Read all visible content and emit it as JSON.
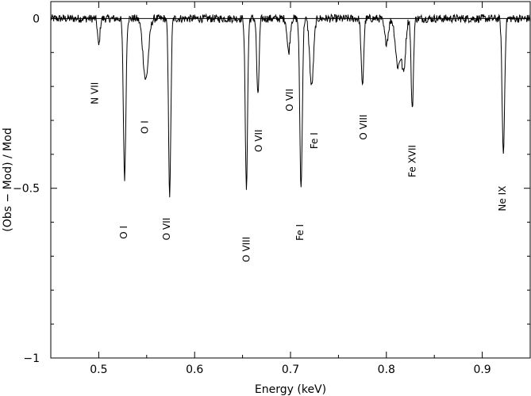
{
  "chart_data": {
    "type": "line",
    "title": "",
    "xlabel": "Energy (keV)",
    "ylabel": "(Obs − Mod) / Mod",
    "xlim": [
      0.45,
      0.95
    ],
    "ylim": [
      -1,
      0.05
    ],
    "xticks": [
      0.5,
      0.6,
      0.7,
      0.8,
      0.9
    ],
    "xtick_labels": [
      "0.5",
      "0.6",
      "0.7",
      "0.8",
      "0.9"
    ],
    "yticks": [
      0,
      -0.5,
      -1
    ],
    "ytick_labels": [
      "0",
      "−0.5",
      "−1"
    ],
    "zero_line": 0,
    "noise_amplitude": 0.012,
    "grid": false,
    "absorption_lines": [
      {
        "energy": 0.5,
        "depth": 0.08,
        "width": 0.0012
      },
      {
        "energy": 0.527,
        "depth": 0.47,
        "width": 0.0013
      },
      {
        "energy": 0.549,
        "depth": 0.18,
        "width": 0.0028
      },
      {
        "energy": 0.574,
        "depth": 0.52,
        "width": 0.0012
      },
      {
        "energy": 0.654,
        "depth": 0.5,
        "width": 0.0012
      },
      {
        "energy": 0.666,
        "depth": 0.23,
        "width": 0.0012
      },
      {
        "energy": 0.698,
        "depth": 0.1,
        "width": 0.0015
      },
      {
        "energy": 0.711,
        "depth": 0.5,
        "width": 0.0013
      },
      {
        "energy": 0.722,
        "depth": 0.2,
        "width": 0.002
      },
      {
        "energy": 0.775,
        "depth": 0.2,
        "width": 0.0013
      },
      {
        "energy": 0.8,
        "depth": 0.07,
        "width": 0.002
      },
      {
        "energy": 0.812,
        "depth": 0.14,
        "width": 0.0025
      },
      {
        "energy": 0.818,
        "depth": 0.15,
        "width": 0.002
      },
      {
        "energy": 0.827,
        "depth": 0.27,
        "width": 0.0012
      },
      {
        "energy": 0.922,
        "depth": 0.4,
        "width": 0.0013
      }
    ],
    "annotations": [
      {
        "text": "N VII",
        "x": 0.496,
        "y": -0.22
      },
      {
        "text": "O I",
        "x": 0.526,
        "y": -0.63
      },
      {
        "text": "O I",
        "x": 0.548,
        "y": -0.32
      },
      {
        "text": "O VII",
        "x": 0.571,
        "y": -0.62
      },
      {
        "text": "O VIII",
        "x": 0.654,
        "y": -0.68
      },
      {
        "text": "O VII",
        "x": 0.667,
        "y": -0.36
      },
      {
        "text": "O VII",
        "x": 0.699,
        "y": -0.24
      },
      {
        "text": "Fe I",
        "x": 0.71,
        "y": -0.63
      },
      {
        "text": "Fe I",
        "x": 0.725,
        "y": -0.36
      },
      {
        "text": "O VIII",
        "x": 0.776,
        "y": -0.32
      },
      {
        "text": "Fe XVII",
        "x": 0.827,
        "y": -0.42
      },
      {
        "text": "Ne IX",
        "x": 0.921,
        "y": -0.53
      }
    ]
  }
}
